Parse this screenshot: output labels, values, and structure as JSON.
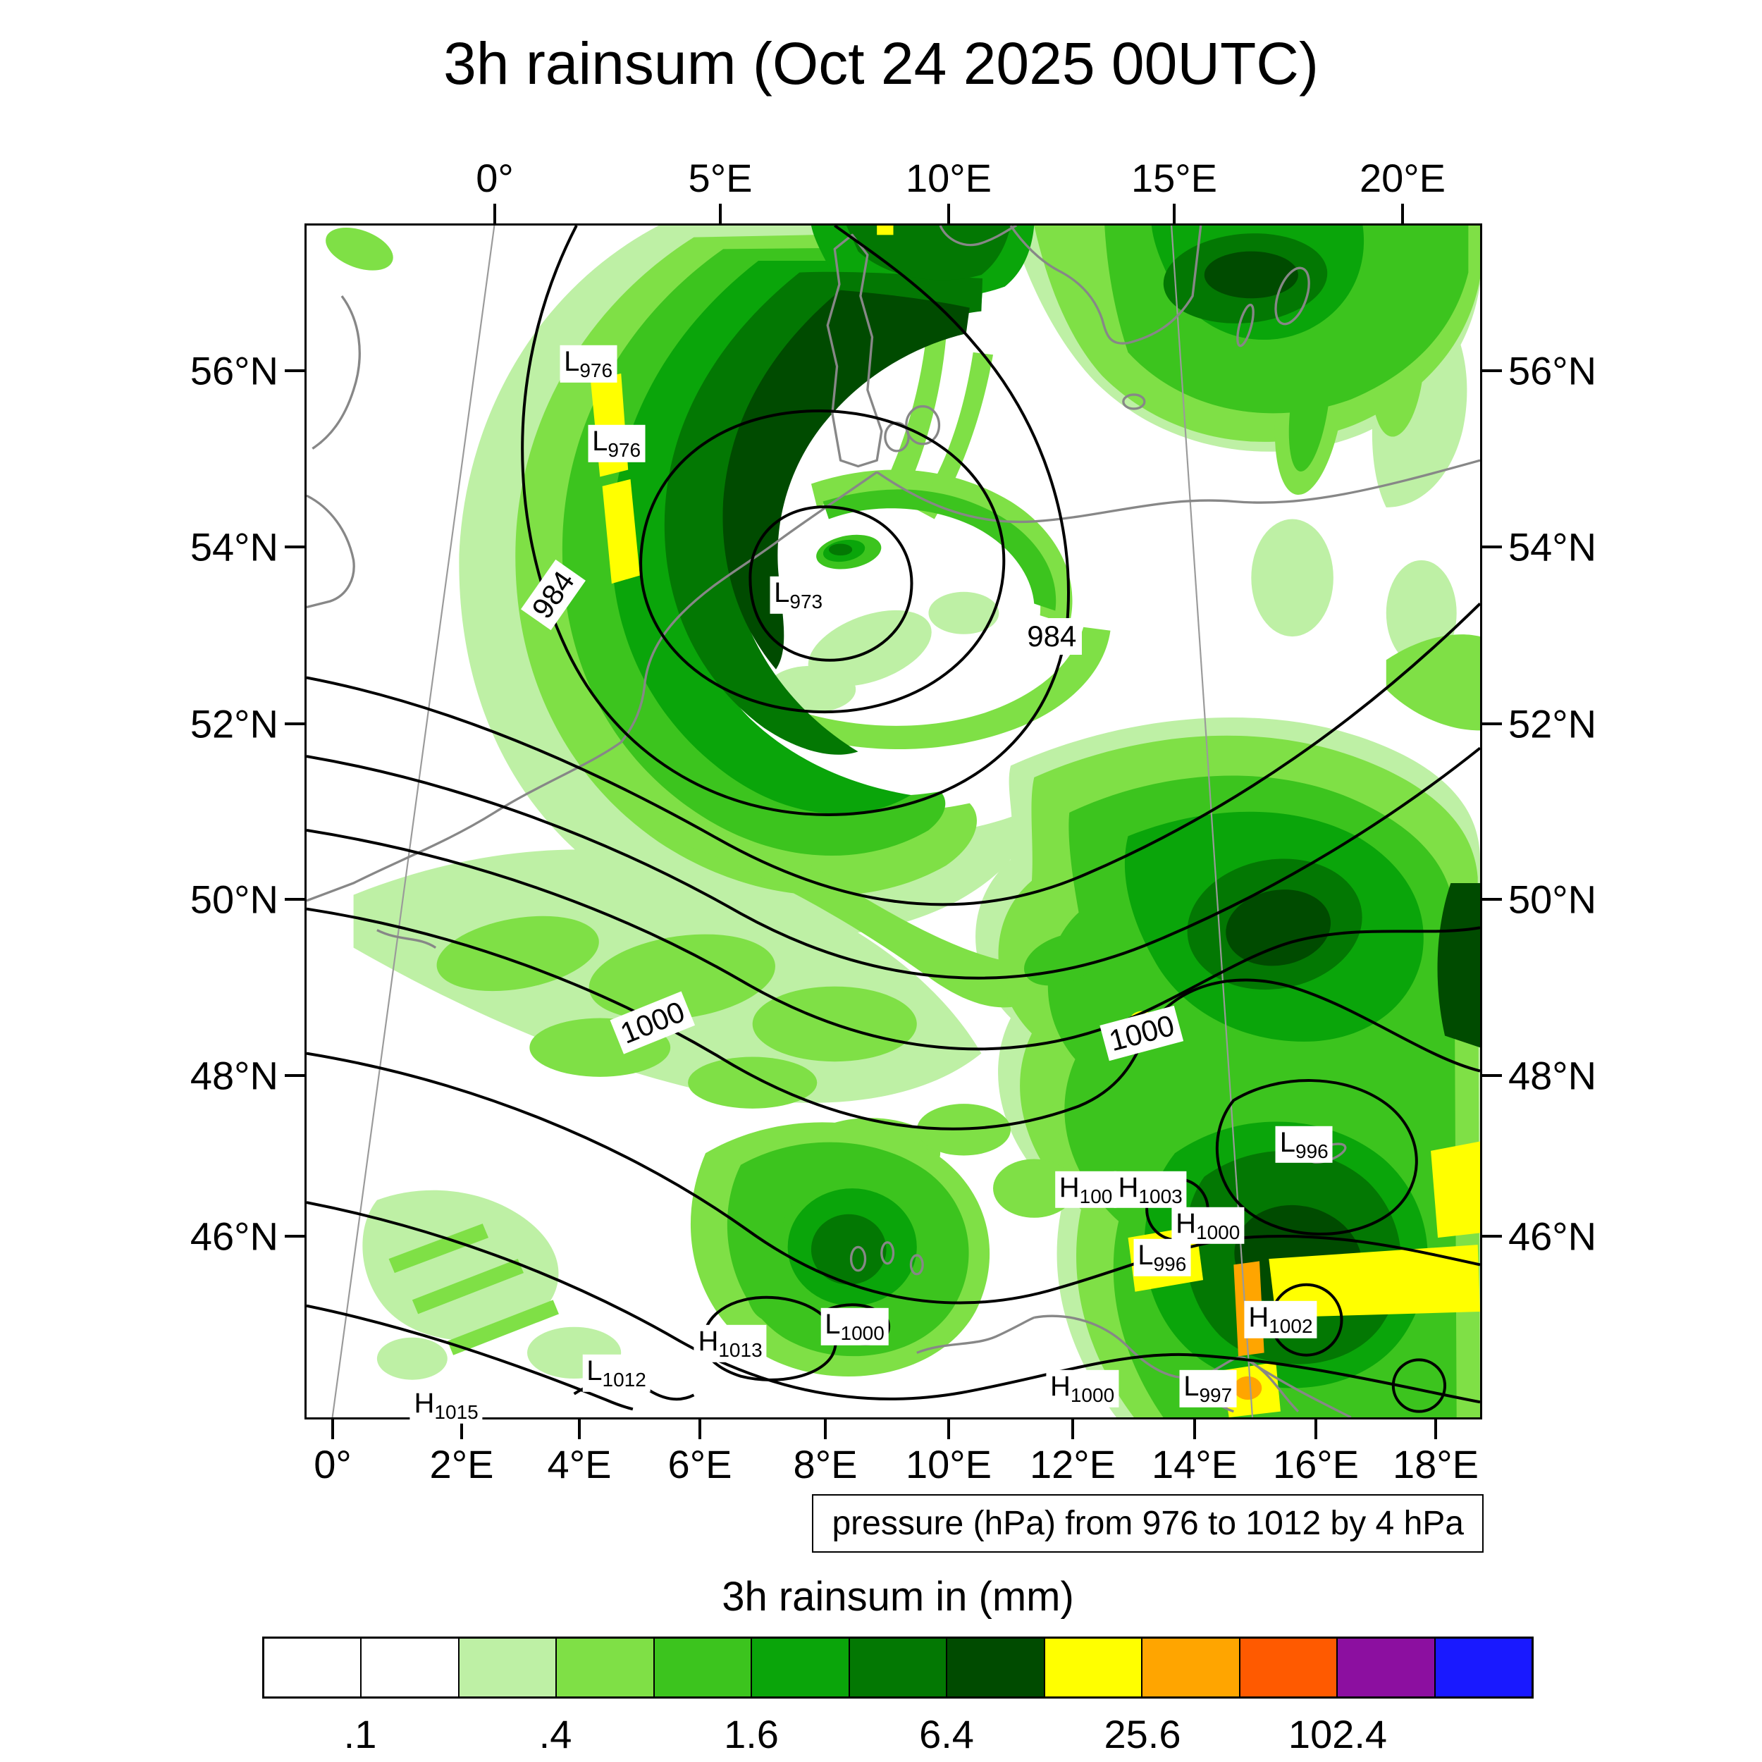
{
  "title": "3h rainsum (Oct 24 2025 00UTC)",
  "axes": {
    "top": [
      "0°",
      "5°E",
      "10°E",
      "15°E",
      "20°E"
    ],
    "bottom": [
      "0°",
      "2°E",
      "4°E",
      "6°E",
      "8°E",
      "10°E",
      "12°E",
      "14°E",
      "16°E",
      "18°E"
    ],
    "left": [
      "56°N",
      "54°N",
      "52°N",
      "50°N",
      "48°N",
      "46°N"
    ],
    "right": [
      "56°N",
      "54°N",
      "52°N",
      "50°N",
      "48°N",
      "46°N"
    ]
  },
  "map": {
    "pressure_caption": "pressure (hPa) from 976 to 1012 by 4 hPa",
    "contour_labels": [
      "984",
      "984",
      "1000",
      "1000"
    ],
    "centers": [
      {
        "type": "L",
        "value": "976"
      },
      {
        "type": "L",
        "value": "976"
      },
      {
        "type": "L",
        "value": "973"
      },
      {
        "type": "L",
        "value": "996"
      },
      {
        "type": "H",
        "value": "100"
      },
      {
        "type": "H",
        "value": "1003"
      },
      {
        "type": "H",
        "value": "1000"
      },
      {
        "type": "L",
        "value": "996"
      },
      {
        "type": "H",
        "value": "1002"
      },
      {
        "type": "L",
        "value": "1000"
      },
      {
        "type": "H",
        "value": "1013"
      },
      {
        "type": "L",
        "value": "1012"
      },
      {
        "type": "H",
        "value": "1000"
      },
      {
        "type": "L",
        "value": "997"
      },
      {
        "type": "H",
        "value": "1015"
      }
    ]
  },
  "colorbar": {
    "title": "3h rainsum in (mm)",
    "tick_labels": [
      ".1",
      ".4",
      "1.6",
      "6.4",
      "25.6",
      "102.4"
    ],
    "colors": [
      "#FFFFFF",
      "#FFFFFF",
      "#BEF0A5",
      "#7FE046",
      "#3CC41E",
      "#0AA50A",
      "#037803",
      "#004B00",
      "#FFFF00",
      "#FFA500",
      "#FF5A00",
      "#8C0FA0",
      "#1919FF"
    ]
  }
}
